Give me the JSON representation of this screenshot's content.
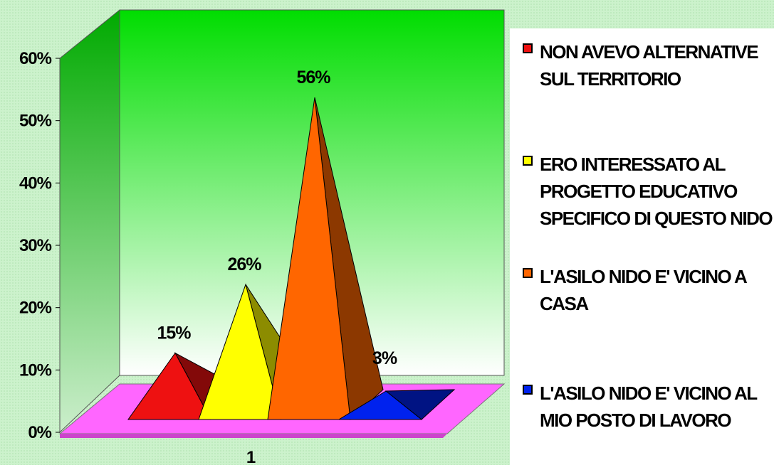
{
  "chart_data": {
    "type": "bar",
    "style": "3d-pyramid",
    "categories": [
      "1"
    ],
    "series": [
      {
        "name": "NON AVEVO ALTERNATIVE SUL TERRITORIO",
        "values": [
          15
        ],
        "label": "15%",
        "color": "#ee1111"
      },
      {
        "name": "ERO INTERESSATO AL PROGETTO EDUCATIVO SPECIFICO DI QUESTO NIDO",
        "values": [
          26
        ],
        "label": "26%",
        "color": "#ffff00"
      },
      {
        "name": "L'ASILO NIDO E' VICINO A CASA",
        "values": [
          56
        ],
        "label": "56%",
        "color": "#ff6600"
      },
      {
        "name": "L'ASILO NIDO E' VICINO AL MIO POSTO DI LAVORO",
        "values": [
          3
        ],
        "label": "3%",
        "color": "#0022ee"
      }
    ],
    "ylim": [
      0,
      60
    ],
    "yticks": [
      "0%",
      "10%",
      "20%",
      "30%",
      "40%",
      "50%",
      "60%"
    ],
    "xticks": [
      "1"
    ],
    "legend_position": "right",
    "wall_color": "#00dd00",
    "floor_color": "#ff66ff"
  }
}
